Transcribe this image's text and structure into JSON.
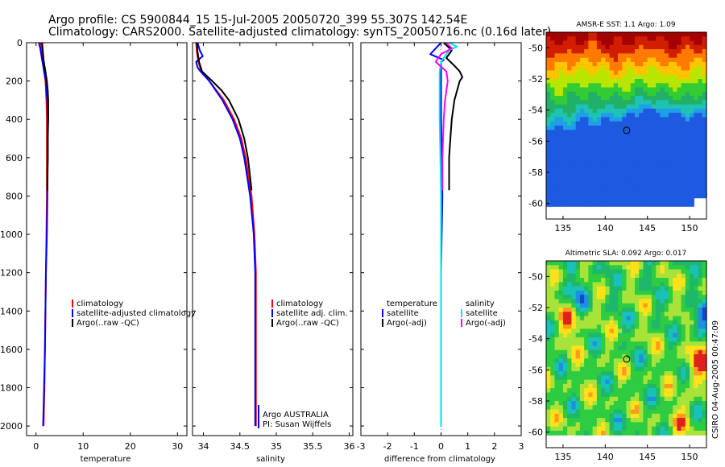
{
  "header": {
    "line1": "Argo profile: CS 5900844_15 15-Jul-2005 20050720_399 55.307S 142.54E",
    "line2": "Climatology: CARS2000. Satellite-adjusted climatology: synTS_20050716.nc (0.16d later)"
  },
  "credit": "CSIRO 04-Aug-2005 00:47:09",
  "colors": {
    "red": "#ff0000",
    "blue": "#0000ff",
    "black": "#000000",
    "cyan": "#00e5e5",
    "magenta": "#ff00ff"
  },
  "chart_data": [
    {
      "type": "line",
      "id": "temperature",
      "xlabel": "temperature",
      "ylabel": "",
      "xlim": [
        -2,
        32
      ],
      "ylim": [
        2050,
        0
      ],
      "xticks": [
        0,
        10,
        20,
        30
      ],
      "xtick_labels": [
        "0",
        "10",
        "20",
        "30"
      ],
      "yticks": [
        0,
        200,
        400,
        600,
        800,
        1000,
        1200,
        1400,
        1600,
        1800,
        2000
      ],
      "ytick_labels": [
        "0",
        "200",
        "400",
        "600",
        "800",
        "1000",
        "1200",
        "1400",
        "1600",
        "1800",
        "2000"
      ],
      "legend": [
        {
          "label": "climatology",
          "color": "#ff0000"
        },
        {
          "label": "satellite-adjusted climatology",
          "color": "#0000ff"
        },
        {
          "label": "Argo(..raw -QC)",
          "color": "#000000"
        }
      ],
      "series": [
        {
          "name": "climatology",
          "color": "#ff0000",
          "depth": [
            0,
            50,
            100,
            150,
            200,
            300,
            400,
            600,
            800,
            1000,
            1200,
            1400,
            1600,
            1800,
            2000
          ],
          "values": [
            1.0,
            1.3,
            1.5,
            1.7,
            2.0,
            2.2,
            2.3,
            2.3,
            2.3,
            2.2,
            2.1,
            2.0,
            1.9,
            1.8,
            1.6
          ]
        },
        {
          "name": "satellite-adjusted climatology",
          "color": "#0000ff",
          "depth": [
            0,
            30,
            60,
            90,
            120,
            150,
            200,
            300,
            400,
            600,
            800,
            1000,
            1200,
            1400,
            1600,
            1800,
            2000
          ],
          "values": [
            0.6,
            0.9,
            1.1,
            1.3,
            1.5,
            1.7,
            2.1,
            2.4,
            2.5,
            2.5,
            2.4,
            2.3,
            2.1,
            2.0,
            1.9,
            1.7,
            1.5
          ]
        },
        {
          "name": "Argo(..raw -QC)",
          "color": "#000000",
          "depth": [
            0,
            30,
            60,
            90,
            120,
            150,
            200,
            250,
            300,
            400,
            500,
            600,
            700,
            770
          ],
          "values": [
            1.3,
            1.4,
            1.5,
            1.6,
            1.8,
            2.0,
            2.3,
            2.5,
            2.6,
            2.6,
            2.5,
            2.5,
            2.4,
            2.4
          ]
        }
      ]
    },
    {
      "type": "line",
      "id": "salinity",
      "xlabel": "salinity",
      "ylabel": "",
      "xlim": [
        33.85,
        36.05
      ],
      "ylim": [
        2050,
        0
      ],
      "xticks": [
        34,
        34.5,
        35,
        35.5,
        36
      ],
      "xtick_labels": [
        "34",
        "34.5",
        "35",
        "35.5",
        "36"
      ],
      "legend": [
        {
          "label": "climatology",
          "color": "#ff0000"
        },
        {
          "label": "satellite adj. clim.",
          "color": "#0000ff"
        },
        {
          "label": "Argo(..raw -QC)",
          "color": "#000000"
        }
      ],
      "annotation": [
        "Argo AUSTRALIA",
        "PI: Susan Wijffels"
      ],
      "series": [
        {
          "name": "climatology",
          "color": "#ff0000",
          "depth": [
            0,
            50,
            100,
            150,
            200,
            300,
            400,
            500,
            600,
            800,
            1000,
            1200,
            1400,
            1600,
            1800,
            2000
          ],
          "values": [
            33.9,
            33.91,
            33.93,
            33.97,
            34.08,
            34.28,
            34.42,
            34.52,
            34.58,
            34.66,
            34.7,
            34.72,
            34.72,
            34.72,
            34.72,
            34.72
          ]
        },
        {
          "name": "satellite adj. clim.",
          "color": "#0000ff",
          "depth": [
            0,
            40,
            70,
            100,
            130,
            150,
            200,
            300,
            400,
            500,
            600,
            800,
            1000,
            1200,
            1400,
            1600,
            1800,
            2000
          ],
          "values": [
            33.92,
            33.95,
            33.99,
            33.9,
            33.92,
            33.96,
            34.08,
            34.26,
            34.4,
            34.5,
            34.56,
            34.64,
            34.69,
            34.71,
            34.71,
            34.71,
            34.71,
            34.71
          ]
        },
        {
          "name": "Argo(..raw -QC)",
          "color": "#000000",
          "depth": [
            0,
            50,
            100,
            150,
            200,
            250,
            300,
            400,
            500,
            600,
            700,
            770
          ],
          "values": [
            33.91,
            33.92,
            33.94,
            33.98,
            34.12,
            34.25,
            34.35,
            34.48,
            34.56,
            34.61,
            34.64,
            34.66
          ]
        }
      ]
    },
    {
      "type": "line",
      "id": "difference",
      "xlabel": "difference from climatology",
      "ylabel": "",
      "xlim": [
        -3,
        3
      ],
      "ylim": [
        2050,
        0
      ],
      "xticks": [
        -3,
        -2,
        -1,
        0,
        1,
        2,
        3
      ],
      "xtick_labels": [
        "-3",
        "-2",
        "-1",
        "0",
        "1",
        "2",
        "3"
      ],
      "legend_left": [
        {
          "label": "temperature",
          "color": ""
        },
        {
          "label": "satellite",
          "color": "#0000ff"
        },
        {
          "label": "Argo(-adj)",
          "color": "#000000"
        }
      ],
      "legend_right": [
        {
          "label": "salinity",
          "color": ""
        },
        {
          "label": "satellite",
          "color": "#00e5e5"
        },
        {
          "label": "Argo(-adj)",
          "color": "#ff00ff"
        }
      ],
      "series": [
        {
          "name": "temperature satellite",
          "color": "#0000ff",
          "depth": [
            0,
            30,
            60,
            90,
            100,
            150,
            200,
            400,
            800,
            1200,
            1600,
            2000
          ],
          "values": [
            0.0,
            -0.2,
            -0.4,
            0.1,
            0.0,
            0.0,
            0.0,
            0.0,
            0.05,
            0.0,
            0.0,
            0.0
          ]
        },
        {
          "name": "temperature Argo(-adj)",
          "color": "#000000",
          "depth": [
            0,
            40,
            80,
            120,
            150,
            180,
            200,
            250,
            300,
            400,
            500,
            600,
            700,
            770
          ],
          "values": [
            0.1,
            0.4,
            0.2,
            0.5,
            0.7,
            0.8,
            0.7,
            0.6,
            0.5,
            0.4,
            0.35,
            0.3,
            0.3,
            0.3
          ]
        },
        {
          "name": "salinity satellite",
          "color": "#00e5e5",
          "depth": [
            0,
            20,
            40,
            60,
            100,
            150,
            200,
            400,
            800,
            1200,
            1600,
            2000
          ],
          "values": [
            0.3,
            0.6,
            0.3,
            0.2,
            0.0,
            -0.05,
            -0.05,
            -0.05,
            0.0,
            0.0,
            0.0,
            0.0
          ]
        },
        {
          "name": "salinity Argo(-adj)",
          "color": "#ff00ff",
          "depth": [
            0,
            30,
            60,
            100,
            150,
            200,
            300,
            400,
            600,
            770
          ],
          "values": [
            0.2,
            0.4,
            0.0,
            -0.2,
            0.2,
            0.25,
            0.15,
            0.1,
            0.05,
            0.05
          ]
        }
      ]
    },
    {
      "type": "heatmap",
      "id": "sst-map",
      "title": "AMSR-E SST: 1.1 Argo: 1.09",
      "xlim": [
        133,
        152
      ],
      "ylim": [
        -61,
        -49
      ],
      "xticks": [
        135,
        140,
        145,
        150
      ],
      "yticks": [
        -50,
        -52,
        -54,
        -56,
        -58,
        -60
      ],
      "ytick_labels": [
        "-50",
        "-52",
        "-54",
        "-56",
        "-58",
        "-60"
      ],
      "marker": {
        "lon": 142.54,
        "lat": -55.307
      },
      "field": "sst"
    },
    {
      "type": "heatmap",
      "id": "sla-map",
      "title": "Altimetric SLA: 0.092 Argo: 0.017",
      "xlim": [
        133,
        152
      ],
      "ylim": [
        -61,
        -49
      ],
      "xticks": [
        135,
        140,
        145,
        150
      ],
      "yticks": [
        -50,
        -52,
        -54,
        -56,
        -58,
        -60
      ],
      "ytick_labels": [
        "-50",
        "-52",
        "-54",
        "-56",
        "-58",
        "-60"
      ],
      "marker": {
        "lon": 142.54,
        "lat": -55.307
      },
      "field": "sla"
    }
  ]
}
